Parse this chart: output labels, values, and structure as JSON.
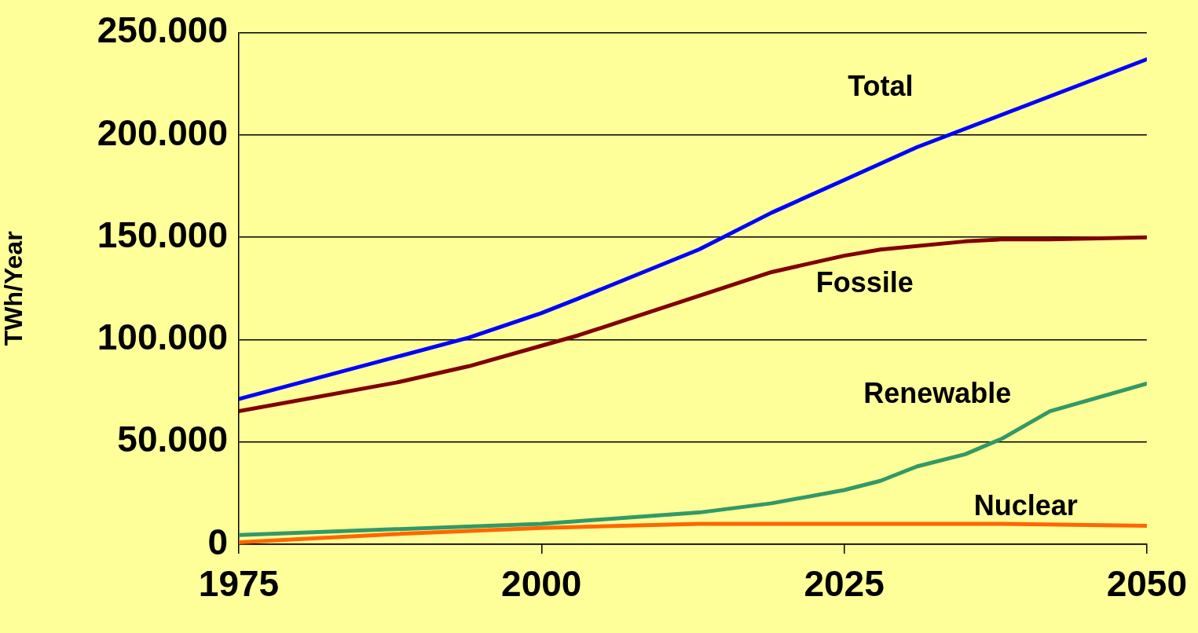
{
  "chart_data": {
    "type": "line",
    "ylabel": "TWh/Year",
    "xlim": [
      1975,
      2050
    ],
    "xticks": [
      1975,
      2000,
      2025,
      2050
    ],
    "ylim": [
      0,
      250000
    ],
    "yticks": [
      {
        "value": 0,
        "label": "0"
      },
      {
        "value": 50000,
        "label": "50.000"
      },
      {
        "value": 100000,
        "label": "100.000"
      },
      {
        "value": 150000,
        "label": "150.000"
      },
      {
        "value": 200000,
        "label": "200.000"
      },
      {
        "value": 250000,
        "label": "250.000"
      }
    ],
    "grid": "y",
    "legend": false,
    "marker": "none",
    "line_style": "solid",
    "series": [
      {
        "name": "Total",
        "color": "#0000ff",
        "x": [
          1975,
          1994,
          2000,
          2003,
          2013,
          2019,
          2025,
          2031,
          2050
        ],
        "values": [
          71000,
          101000,
          113000,
          120000,
          144000,
          162000,
          178000,
          194000,
          237000
        ]
      },
      {
        "name": "Fossile",
        "color": "#800000",
        "x": [
          1975,
          1988,
          1994,
          2000,
          2003,
          2019,
          2025,
          2028,
          2035,
          2038,
          2042,
          2050
        ],
        "values": [
          65000,
          79000,
          87000,
          97000,
          102000,
          133000,
          141000,
          144000,
          148000,
          149000,
          149000,
          150000
        ]
      },
      {
        "name": "Renewable",
        "color": "#339966",
        "x": [
          1975,
          2000,
          2013,
          2019,
          2025,
          2028,
          2031,
          2035,
          2038,
          2042,
          2050
        ],
        "values": [
          4500,
          10000,
          15500,
          20000,
          26500,
          31000,
          38000,
          44000,
          51500,
          65000,
          78500
        ]
      },
      {
        "name": "Nuclear",
        "color": "#ff6600",
        "x": [
          1975,
          1988,
          2000,
          2013,
          2038,
          2050
        ],
        "values": [
          1000,
          5000,
          8000,
          10000,
          10000,
          9000
        ]
      }
    ]
  }
}
